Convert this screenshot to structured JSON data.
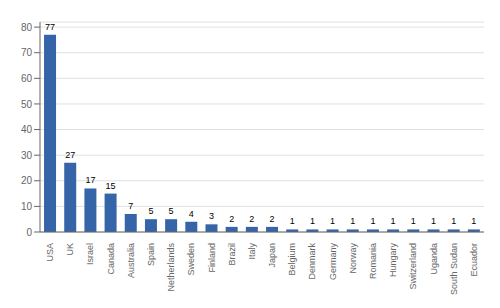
{
  "chart_data": {
    "type": "bar",
    "categories": [
      "USA",
      "UK",
      "Israel",
      "Canada",
      "Australia",
      "Spain",
      "Netherlands",
      "Sweden",
      "Finland",
      "Brazil",
      "Italy",
      "Japan",
      "Belgium",
      "Denmark",
      "Germany",
      "Norway",
      "Romania",
      "Hungary",
      "Switzerland",
      "Uganda",
      "South Sudan",
      "Ecuador"
    ],
    "values": [
      77,
      27,
      17,
      15,
      7,
      5,
      5,
      4,
      3,
      2,
      2,
      2,
      1,
      1,
      1,
      1,
      1,
      1,
      1,
      1,
      1,
      1
    ],
    "color": "#3565A8",
    "ylim": [
      0,
      82
    ],
    "yticks": [
      0,
      10,
      20,
      30,
      40,
      50,
      60,
      70,
      80
    ],
    "grid": true,
    "data_labels": true
  }
}
